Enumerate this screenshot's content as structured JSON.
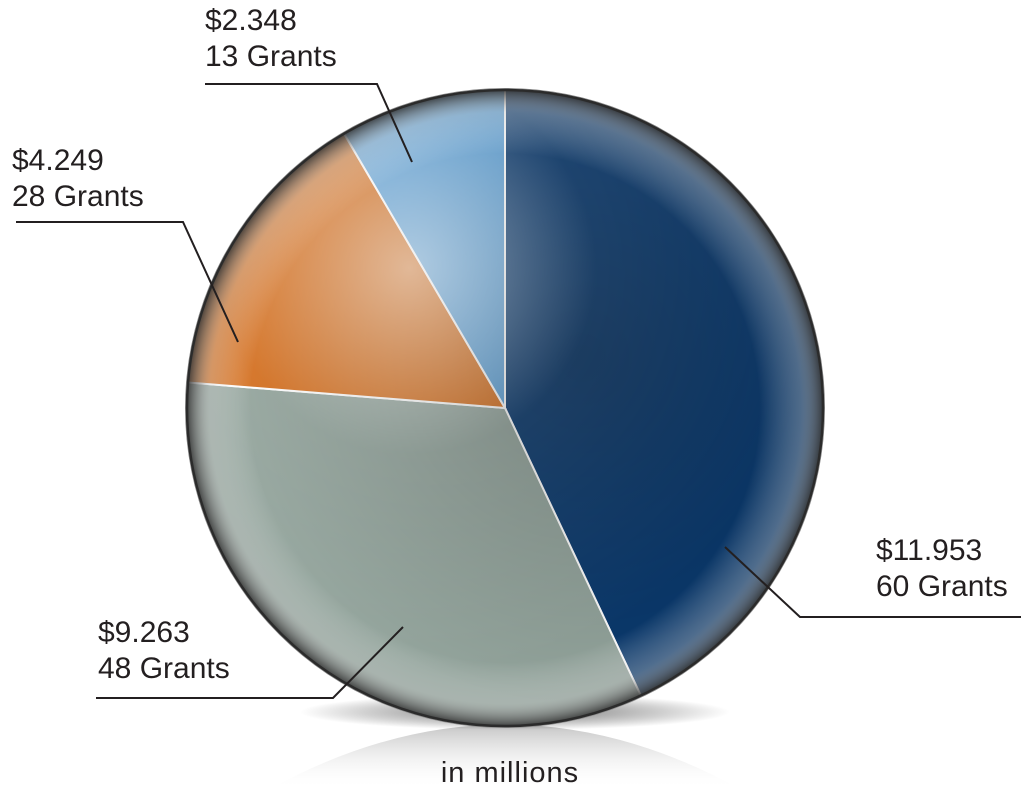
{
  "chart_data": {
    "type": "pie",
    "unit_note": "in millions",
    "slices": [
      {
        "value": 11.953,
        "value_label": "$11.953",
        "grants": 60,
        "grants_label": "60 Grants",
        "color": "#0b3a6e"
      },
      {
        "value": 9.263,
        "value_label": "$9.263",
        "grants": 48,
        "grants_label": "48 Grants",
        "color": "#93a49c"
      },
      {
        "value": 4.249,
        "value_label": "$4.249",
        "grants": 28,
        "grants_label": "28 Grants",
        "color": "#d56e1c"
      },
      {
        "value": 2.348,
        "value_label": "$2.348",
        "grants": 13,
        "grants_label": "13 Grants",
        "color": "#5a9fd6"
      }
    ]
  }
}
